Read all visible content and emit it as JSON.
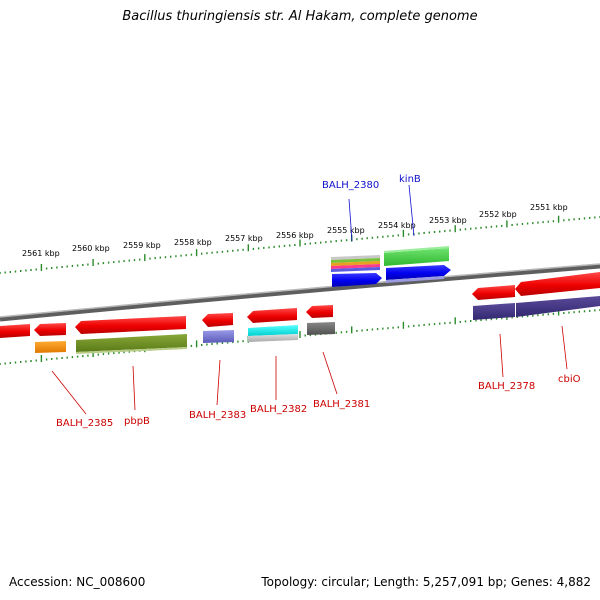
{
  "title": "Bacillus thuringiensis str. Al Hakam, complete genome",
  "footer": {
    "accession": "Accession: NC_008600",
    "topology": "Topology: circular; Length: 5,257,091 bp; Genes: 4,882"
  },
  "colors": {
    "forward_label": "#1010cc",
    "reverse_label": "#cc0000",
    "backbone": "#7a7a7a",
    "ticks": "#2b8a2b"
  },
  "scale_labels": [
    "2561 kbp",
    "2560 kbp",
    "2559 kbp",
    "2558 kbp",
    "2557 kbp",
    "2556 kbp",
    "2555 kbp",
    "2554 kbp",
    "2553 kbp",
    "2552 kbp",
    "2551 kbp"
  ],
  "forward_genes": [
    {
      "name": "BALH_2380",
      "color": "#0000ee"
    },
    {
      "name": "kinB",
      "color": "#0000ee"
    }
  ],
  "reverse_genes": [
    {
      "name": "BALH_2385",
      "color": "#ee0000"
    },
    {
      "name": "pbpB",
      "color": "#ee0000"
    },
    {
      "name": "BALH_2383",
      "color": "#ee0000"
    },
    {
      "name": "BALH_2382",
      "color": "#ee0000"
    },
    {
      "name": "BALH_2381",
      "color": "#ee0000"
    },
    {
      "name": "BALH_2378",
      "color": "#ee0000"
    },
    {
      "name": "cbiO",
      "color": "#ee0000"
    }
  ]
}
